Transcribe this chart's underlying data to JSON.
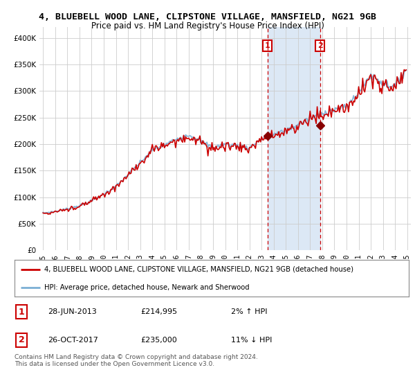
{
  "title": "4, BLUEBELL WOOD LANE, CLIPSTONE VILLAGE, MANSFIELD, NG21 9GB",
  "subtitle": "Price paid vs. HM Land Registry's House Price Index (HPI)",
  "ylim": [
    0,
    420000
  ],
  "yticks": [
    0,
    50000,
    100000,
    150000,
    200000,
    250000,
    300000,
    350000,
    400000
  ],
  "ytick_labels": [
    "£0",
    "£50K",
    "£100K",
    "£150K",
    "£200K",
    "£250K",
    "£300K",
    "£350K",
    "£400K"
  ],
  "xlim": [
    1994.7,
    2025.3
  ],
  "hpi_color": "#7bafd4",
  "price_color": "#cc0000",
  "transaction1_year": 2013.49,
  "transaction2_year": 2017.82,
  "transaction1_price": 214995,
  "transaction2_price": 235000,
  "legend_line1": "4, BLUEBELL WOOD LANE, CLIPSTONE VILLAGE, MANSFIELD, NG21 9GB (detached house)",
  "legend_line2": "HPI: Average price, detached house, Newark and Sherwood",
  "table_rows": [
    {
      "num": "1",
      "date": "28-JUN-2013",
      "price": "£214,995",
      "hpi": "2% ↑ HPI"
    },
    {
      "num": "2",
      "date": "26-OCT-2017",
      "price": "£235,000",
      "hpi": "11% ↓ HPI"
    }
  ],
  "footnote": "Contains HM Land Registry data © Crown copyright and database right 2024.\nThis data is licensed under the Open Government Licence v3.0.",
  "background_color": "#ffffff",
  "plot_bg_color": "#ffffff",
  "grid_color": "#cccccc",
  "span_color": "#dce8f5"
}
